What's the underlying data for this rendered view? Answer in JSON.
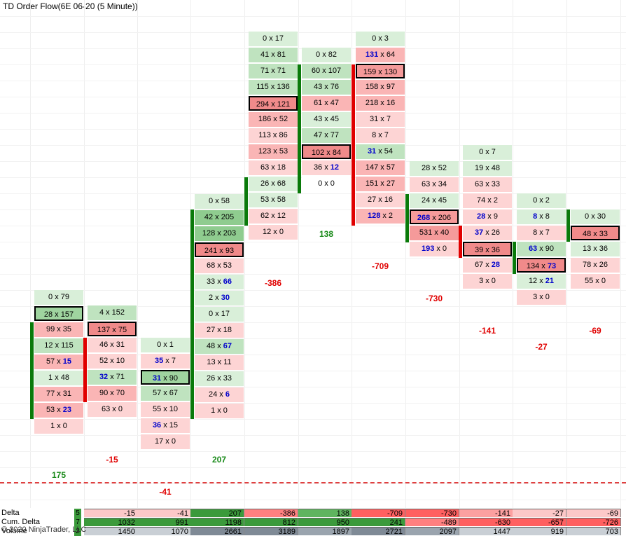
{
  "title": "TD Order Flow(6E 06-20 (5 Minute))",
  "copyright": "© 2020 NinjaTrader, LLC",
  "colors": {
    "pos": "#1a8a1a",
    "neg": "#e00000",
    "blue": "#0000cc"
  },
  "columns": [
    {
      "total": "175",
      "totalSign": "pos",
      "bar": "green",
      "cells": [
        [
          "0 x 79",
          "g1"
        ],
        [
          "28 x 157",
          "g4",
          1
        ],
        [
          "99 x 35",
          "r2"
        ],
        [
          "12 x 115",
          "g2"
        ],
        [
          "57 x |15|",
          "r2"
        ],
        [
          "1 x 48",
          "g1"
        ],
        [
          "77 x 31",
          "r2"
        ],
        [
          "53 x |23|",
          "r2"
        ],
        [
          "1 x 0",
          "r1"
        ]
      ]
    },
    {
      "total": "-15",
      "totalSign": "neg",
      "bar": "red",
      "cells": [
        [
          "4 x 152",
          "g2"
        ],
        [
          "137 x 75",
          "r4",
          1
        ],
        [
          "46 x 31",
          "r1"
        ],
        [
          "52 x 10",
          "r1"
        ],
        [
          "|32| x 71",
          "g2"
        ],
        [
          "90 x 70",
          "r2"
        ],
        [
          "63 x 0",
          "r1"
        ]
      ]
    },
    {
      "total": "-41",
      "totalSign": "neg",
      "bar": "",
      "cells": [
        [
          "0 x 1",
          "g1"
        ],
        [
          "|35| x 7",
          "r1"
        ],
        [
          "|31| x 90",
          "g4",
          1
        ],
        [
          "57 x 67",
          "g2"
        ],
        [
          "55 x 10",
          "r1"
        ],
        [
          "|36| x 15",
          "r1"
        ],
        [
          "17 x 0",
          "r1"
        ]
      ]
    },
    {
      "total": "207",
      "totalSign": "pos",
      "bar": "green",
      "cells": [
        [
          "0 x 58",
          "g1"
        ],
        [
          "42 x 205",
          "g3"
        ],
        [
          "128 x 203",
          "g3"
        ],
        [
          "241 x 93",
          "r4",
          1
        ],
        [
          "68 x 53",
          "r1"
        ],
        [
          "33 x |66|",
          "g1"
        ],
        [
          "2 x |30|",
          "g1"
        ],
        [
          "0 x 17",
          "g1"
        ],
        [
          "27 x 18",
          "r1"
        ],
        [
          "48 x |67|",
          "g2"
        ],
        [
          "13 x 11",
          "r1"
        ],
        [
          "26 x 33",
          "g1"
        ],
        [
          "24 x |6|",
          "r1"
        ],
        [
          "1 x 0",
          "r1"
        ]
      ]
    },
    {
      "total": "-386",
      "totalSign": "neg",
      "bar": "green",
      "cells": [
        [
          "0 x 17",
          "g1"
        ],
        [
          "41 x 81",
          "g2"
        ],
        [
          "71 x 71",
          "g2"
        ],
        [
          "115 x 136",
          "g2"
        ],
        [
          "294 x 121",
          "r4",
          1
        ],
        [
          "186 x 52",
          "r2"
        ],
        [
          "113 x 86",
          "r1"
        ],
        [
          "123 x 53",
          "r2"
        ],
        [
          "63 x 18",
          "r1"
        ],
        [
          "26 x 68",
          "g1"
        ],
        [
          "53 x 58",
          "g1"
        ],
        [
          "62 x 12",
          "r1"
        ],
        [
          "12 x 0",
          "r1"
        ]
      ]
    },
    {
      "total": "138",
      "totalSign": "pos",
      "bar": "green",
      "cells": [
        [
          "0 x 82",
          "g1"
        ],
        [
          "60 x 107",
          "g2"
        ],
        [
          "43 x 76",
          "g2"
        ],
        [
          "61 x 47",
          "r2"
        ],
        [
          "43 x 45",
          "g1"
        ],
        [
          "47 x 77",
          "g2"
        ],
        [
          "102 x 84",
          "r4",
          1
        ],
        [
          "36 x |12|",
          "r1"
        ],
        [
          "0 x 0",
          "w"
        ]
      ]
    },
    {
      "total": "-709",
      "totalSign": "neg",
      "bar": "red",
      "cells": [
        [
          "0 x 3",
          "g1"
        ],
        [
          "|131| x 64",
          "r2"
        ],
        [
          "159 x 130",
          "r3",
          1
        ],
        [
          "158 x 97",
          "r2"
        ],
        [
          "218 x 16",
          "r2"
        ],
        [
          "31 x 7",
          "r1"
        ],
        [
          "8 x 7",
          "r1"
        ],
        [
          "|31| x 54",
          "g2"
        ],
        [
          "147 x 57",
          "r2"
        ],
        [
          "151 x 27",
          "r2"
        ],
        [
          "27 x 16",
          "r1"
        ],
        [
          "|128| x 2",
          "r2"
        ]
      ]
    },
    {
      "total": "-730",
      "totalSign": "neg",
      "bar": "green",
      "cells": [
        [
          "28 x 52",
          "g1"
        ],
        [
          "63 x 34",
          "r1"
        ],
        [
          "24 x 45",
          "g1"
        ],
        [
          "|268| x 206",
          "r3",
          1
        ],
        [
          "531 x 40",
          "r3"
        ],
        [
          "|193| x 0",
          "r1"
        ]
      ]
    },
    {
      "total": "-141",
      "totalSign": "neg",
      "bar": "red",
      "cells": [
        [
          "0 x 7",
          "g1"
        ],
        [
          "19 x 48",
          "g1"
        ],
        [
          "63 x 33",
          "r1"
        ],
        [
          "74 x 2",
          "r1"
        ],
        [
          "|28| x 9",
          "r1"
        ],
        [
          "|37| x 26",
          "r1"
        ],
        [
          "39 x 36",
          "r4",
          1
        ],
        [
          "67 x |28|",
          "r1"
        ],
        [
          "3 x 0",
          "r1"
        ]
      ]
    },
    {
      "total": "-27",
      "totalSign": "neg",
      "bar": "green",
      "cells": [
        [
          "0 x 2",
          "g1"
        ],
        [
          "|8| x 8",
          "g1"
        ],
        [
          "8 x 7",
          "r1"
        ],
        [
          "|63| x 90",
          "g2"
        ],
        [
          "134 x |73|",
          "r4",
          1
        ],
        [
          "12 x |21|",
          "g1"
        ],
        [
          "3 x 0",
          "r1"
        ]
      ]
    },
    {
      "total": "-69",
      "totalSign": "neg",
      "bar": "green",
      "cells": [
        [
          "0 x 30",
          "g1"
        ],
        [
          "48 x 33",
          "r4",
          1
        ],
        [
          "13 x 36",
          "g1"
        ],
        [
          "78 x 26",
          "r1"
        ],
        [
          "55 x 0",
          "r1"
        ]
      ]
    }
  ],
  "panel": {
    "rows": [
      {
        "label": "Delta",
        "num": "5",
        "values": [
          "-15",
          "-41",
          "207",
          "-386",
          "138",
          "-709",
          "-730",
          "-141",
          "-27",
          "-69"
        ]
      },
      {
        "label": "Cum. Delta",
        "num": "7",
        "values": [
          "1032",
          "991",
          "1198",
          "812",
          "950",
          "241",
          "-489",
          "-630",
          "-657",
          "-726"
        ]
      },
      {
        "label": "Volume",
        "num": "2",
        "values": [
          "1450",
          "1070",
          "2661",
          "3189",
          "1897",
          "2721",
          "2097",
          "1447",
          "919",
          "703"
        ]
      }
    ]
  }
}
